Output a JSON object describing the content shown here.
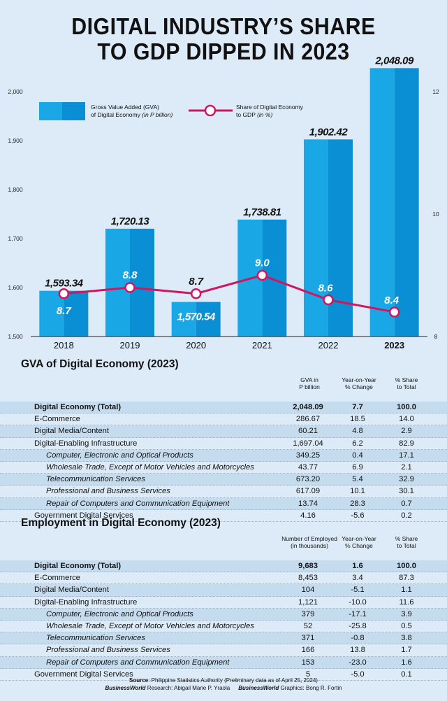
{
  "title_line1": "DIGITAL INDUSTRY’S SHARE",
  "title_line2": "TO GDP DIPPED IN 2023",
  "chart_data": {
    "type": "bar",
    "categories": [
      "2018",
      "2019",
      "2020",
      "2021",
      "2022",
      "2023"
    ],
    "series": [
      {
        "name": "Gross Value Added (GVA) of Digital Economy (in P billion)",
        "type": "bar",
        "axis": "left",
        "values": [
          1593.34,
          1720.13,
          1570.54,
          1738.81,
          1902.42,
          2048.09
        ],
        "labels": [
          "1,593.34",
          "1,720.13",
          "1,570.54",
          "1,738.81",
          "1,902.42",
          "2,048.09"
        ]
      },
      {
        "name": "Share of Digital Economy to GDP (in %)",
        "type": "line",
        "axis": "right",
        "values": [
          8.7,
          8.8,
          8.7,
          9.0,
          8.6,
          8.4
        ],
        "labels": [
          "8.7",
          "8.8",
          "8.7",
          "9.0",
          "8.6",
          "8.4"
        ]
      }
    ],
    "yleft_ticks": [
      "1,500",
      "1,600",
      "1,700",
      "1,800",
      "1,900",
      "2,000"
    ],
    "yleft_lim": [
      1500,
      2100
    ],
    "yright_ticks": [
      "8",
      "10",
      "12"
    ],
    "yright_lim": [
      8,
      12.5
    ],
    "legend": {
      "gva_line1": "Gross Value Added (GVA)",
      "gva_line2": "of Digital Economy",
      "gva_line2_unit": "(in P billion)",
      "share_line1": "Share of Digital Economy",
      "share_line2": "to GDP",
      "share_line2_unit": "(in %)",
      "position": "top-left"
    },
    "colors": {
      "bar": "#1aa7e6",
      "bar_dark": "#0a8fd4",
      "line": "#d3155f"
    }
  },
  "gva_table": {
    "heading": "GVA of Digital Economy (2023)",
    "col1": [
      "GVA in",
      "P billion"
    ],
    "col2": [
      "Year-on-Year",
      "% Change"
    ],
    "col3": [
      "% Share",
      "to Total"
    ],
    "rows": [
      {
        "label": "Digital Economy (Total)",
        "v1": "2,048.09",
        "v2": "7.7",
        "v3": "100.0",
        "kind": "total"
      },
      {
        "label": "E-Commerce",
        "v1": "286.67",
        "v2": "18.5",
        "v3": "14.0",
        "kind": "main"
      },
      {
        "label": "Digital Media/Content",
        "v1": "60.21",
        "v2": "4.8",
        "v3": "2.9",
        "kind": "main"
      },
      {
        "label": "Digital-Enabling Infrastructure",
        "v1": "1,697.04",
        "v2": "6.2",
        "v3": "82.9",
        "kind": "main"
      },
      {
        "label": "Computer, Electronic and Optical Products",
        "v1": "349.25",
        "v2": "0.4",
        "v3": "17.1",
        "kind": "sub"
      },
      {
        "label": "Wholesale Trade, Except of Motor Vehicles and Motorcycles",
        "v1": "43.77",
        "v2": "6.9",
        "v3": "2.1",
        "kind": "sub"
      },
      {
        "label": "Telecommunication Services",
        "v1": "673.20",
        "v2": "5.4",
        "v3": "32.9",
        "kind": "sub"
      },
      {
        "label": "Professional and Business Services",
        "v1": "617.09",
        "v2": "10.1",
        "v3": "30.1",
        "kind": "sub"
      },
      {
        "label": "Repair of Computers and Communication Equipment",
        "v1": "13.74",
        "v2": "28.3",
        "v3": "0.7",
        "kind": "sub"
      },
      {
        "label": "Government Digital Services",
        "v1": "4.16",
        "v2": "-5.6",
        "v3": "0.2",
        "kind": "main"
      }
    ]
  },
  "emp_table": {
    "heading": "Employment in Digital Economy (2023)",
    "col1": [
      "Number of Employed",
      "(in thousands)"
    ],
    "col2": [
      "Year-on-Year",
      "% Change"
    ],
    "col3": [
      "% Share",
      "to Total"
    ],
    "rows": [
      {
        "label": "Digital Economy (Total)",
        "v1": "9,683",
        "v2": "1.6",
        "v3": "100.0",
        "kind": "total"
      },
      {
        "label": "E-Commerce",
        "v1": "8,453",
        "v2": "3.4",
        "v3": "87.3",
        "kind": "main"
      },
      {
        "label": "Digital Media/Content",
        "v1": "104",
        "v2": "-5.1",
        "v3": "1.1",
        "kind": "main"
      },
      {
        "label": "Digital-Enabling Infrastructure",
        "v1": "1,121",
        "v2": "-10.0",
        "v3": "11.6",
        "kind": "main"
      },
      {
        "label": "Computer, Electronic and Optical Products",
        "v1": "379",
        "v2": "-17.1",
        "v3": "3.9",
        "kind": "sub"
      },
      {
        "label": "Wholesale Trade, Except of Motor Vehicles and Motorcycles",
        "v1": "52",
        "v2": "-25.8",
        "v3": "0.5",
        "kind": "sub"
      },
      {
        "label": "Telecommunication Services",
        "v1": "371",
        "v2": "-0.8",
        "v3": "3.8",
        "kind": "sub"
      },
      {
        "label": "Professional and Business Services",
        "v1": "166",
        "v2": "13.8",
        "v3": "1.7",
        "kind": "sub"
      },
      {
        "label": "Repair of Computers and Communication Equipment",
        "v1": "153",
        "v2": "-23.0",
        "v3": "1.6",
        "kind": "sub"
      },
      {
        "label": "Government Digital Services",
        "v1": "5",
        "v2": "-5.0",
        "v3": "0.1",
        "kind": "main"
      }
    ]
  },
  "footer": {
    "source_label": "Source",
    "source_text": ": Philippine Statistics Authority (Preliminary data as of April 25, 2024)",
    "research_brand": "BusinessWorld",
    "research_label": " Research: Abigail Marie P. Yraola",
    "graphics_brand": "BusinessWorld",
    "graphics_label": " Graphics: Bong R. Fortin"
  }
}
